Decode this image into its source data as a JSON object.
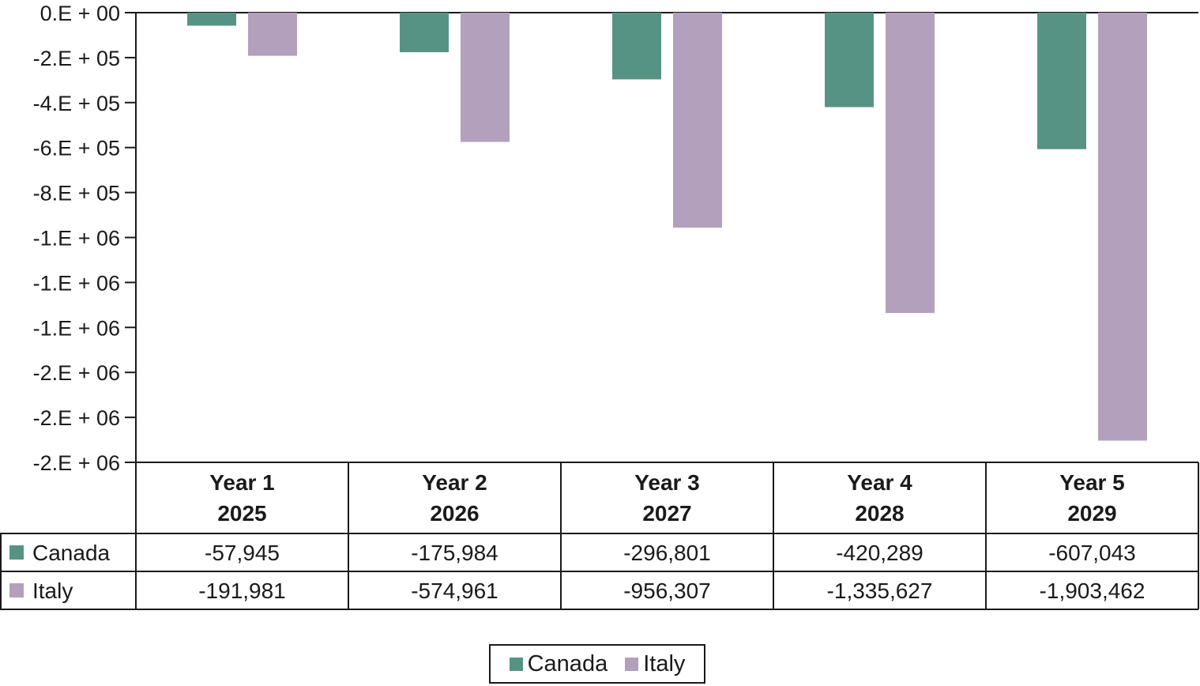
{
  "chart_data": {
    "type": "bar",
    "categories": [
      {
        "line1": "Year 1",
        "line2": "2025"
      },
      {
        "line1": "Year 2",
        "line2": "2026"
      },
      {
        "line1": "Year 3",
        "line2": "2027"
      },
      {
        "line1": "Year 4",
        "line2": "2028"
      },
      {
        "line1": "Year 5",
        "line2": "2029"
      }
    ],
    "series": [
      {
        "name": "Canada",
        "color": "#579385",
        "values": [
          -57945,
          -175984,
          -296801,
          -420289,
          -607043
        ],
        "labels": [
          "-57,945",
          "-175,984",
          "-296,801",
          "-420,289",
          "-607,043"
        ]
      },
      {
        "name": "Italy",
        "color": "#b2a0bd",
        "values": [
          -191981,
          -574961,
          -956307,
          -1335627,
          -1903462
        ],
        "labels": [
          "-191,981",
          "-574,961",
          "-956,307",
          "-1,335,627",
          "-1,903,462"
        ]
      }
    ],
    "y_ticks": [
      {
        "value": 0,
        "label": "0.E + 00"
      },
      {
        "value": -200000,
        "label": "-2.E + 05"
      },
      {
        "value": -400000,
        "label": "-4.E + 05"
      },
      {
        "value": -600000,
        "label": "-6.E + 05"
      },
      {
        "value": -800000,
        "label": "-8.E + 05"
      },
      {
        "value": -1000000,
        "label": "-1.E + 06"
      },
      {
        "value": -1200000,
        "label": "-1.E + 06"
      },
      {
        "value": -1400000,
        "label": "-1.E + 06"
      },
      {
        "value": -1600000,
        "label": "-2.E + 06"
      },
      {
        "value": -1800000,
        "label": "-2.E + 06"
      },
      {
        "value": -2000000,
        "label": "-2.E + 06"
      }
    ],
    "ylim": [
      -2000000,
      0
    ],
    "legend_position": "bottom-center",
    "data_table": true
  }
}
